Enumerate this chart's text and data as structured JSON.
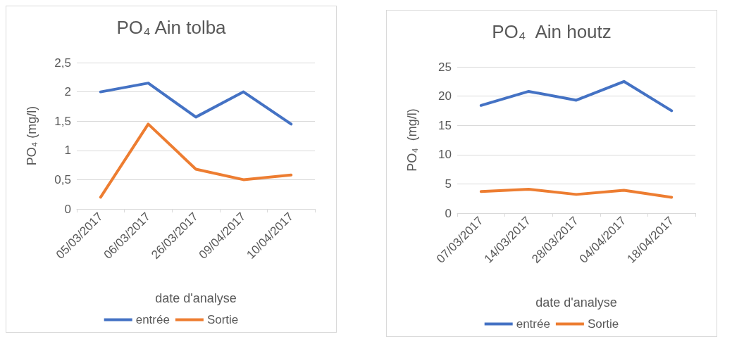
{
  "chart_data": [
    {
      "type": "line",
      "title": "PO₄ Ain tolba",
      "xlabel": "date d'analyse",
      "ylabel": "PO₄ (mg/l)",
      "categories": [
        "05/03/2017",
        "06/03/2017",
        "26/03/2017",
        "09/04/2017",
        "10/04/2017"
      ],
      "series": [
        {
          "name": "entrée",
          "color": "#4472c4",
          "values": [
            2.0,
            2.15,
            1.57,
            2.0,
            1.45
          ]
        },
        {
          "name": "Sortie",
          "color": "#ed7d31",
          "values": [
            0.2,
            1.45,
            0.68,
            0.5,
            0.58
          ]
        }
      ],
      "ylim": [
        0,
        2.5
      ],
      "yticks": [
        0,
        {
          "value": 0.5,
          "label": "0,5"
        },
        1,
        {
          "value": 1.5,
          "label": "1,5"
        },
        2,
        {
          "value": 2.5,
          "label": "2,5"
        }
      ],
      "grid": "y",
      "legend": "bottom",
      "marker": "none",
      "line_style": "solid"
    },
    {
      "type": "line",
      "title": "PO₄  Ain houtz",
      "xlabel": "date d'analyse",
      "ylabel": "PO₄  (mg/l)",
      "categories": [
        "07/03/2017",
        "14/03/2017",
        "28/03/2017",
        "04/04/2017",
        "18/04/2017"
      ],
      "series": [
        {
          "name": "entrée",
          "color": "#4472c4",
          "values": [
            18.4,
            20.8,
            19.3,
            22.5,
            17.5
          ]
        },
        {
          "name": "Sortie",
          "color": "#ed7d31",
          "values": [
            3.7,
            4.1,
            3.2,
            3.9,
            2.7
          ]
        }
      ],
      "ylim": [
        0,
        25
      ],
      "yticks": [
        0,
        5,
        10,
        15,
        20,
        25
      ],
      "grid": "y",
      "legend": "bottom",
      "marker": "none",
      "line_style": "solid"
    }
  ]
}
